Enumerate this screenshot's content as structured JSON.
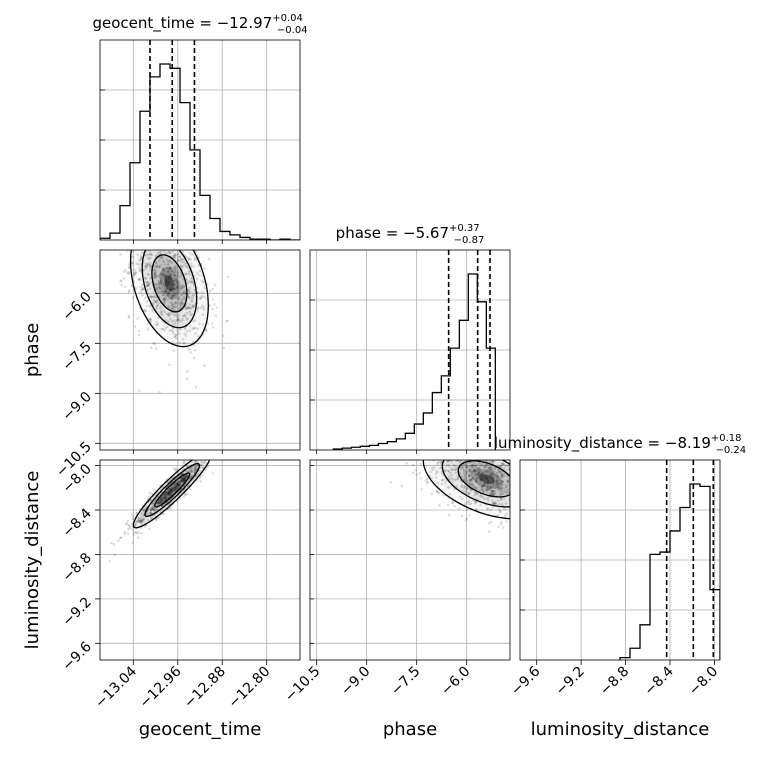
{
  "chart_data": {
    "type": "corner",
    "parameters": [
      {
        "name": "geocent_time",
        "range": [
          -13.1,
          -12.74
        ],
        "ticks": [
          -13.04,
          -12.96,
          -12.88,
          -12.8
        ],
        "tick_labels": [
          "−13.04",
          "−12.96",
          "−12.88",
          "−12.80"
        ],
        "title": {
          "label": "geocent_time",
          "value": "−12.97",
          "plus": "+0.04",
          "minus": "−0.04"
        },
        "quantiles": [
          -13.01,
          -12.97,
          -12.93
        ],
        "hist": {
          "edges_start": -13.1,
          "bin_width": 0.018,
          "counts": [
            2,
            8,
            40,
            90,
            150,
            190,
            205,
            200,
            160,
            105,
            52,
            25,
            10,
            6,
            3,
            1,
            1,
            0,
            1,
            0
          ]
        }
      },
      {
        "name": "phase",
        "range": [
          -10.7,
          -4.7
        ],
        "ticks": [
          -10.5,
          -9.0,
          -7.5,
          -6.0
        ],
        "tick_labels": [
          "−10.5",
          "−9.0",
          "−7.5",
          "−6.0"
        ],
        "title": {
          "label": "phase",
          "value": "−5.67",
          "plus": "+0.37",
          "minus": "−0.87"
        },
        "quantiles": [
          -6.54,
          -5.67,
          -5.3
        ],
        "hist": {
          "edges_start": -10.0,
          "bin_width": 0.27,
          "counts": [
            1,
            2,
            3,
            4,
            5,
            7,
            9,
            12,
            18,
            28,
            40,
            62,
            80,
            110,
            140,
            190,
            160,
            110
          ]
        }
      },
      {
        "name": "luminosity_distance",
        "range": [
          -9.75,
          -7.95
        ],
        "ticks": [
          -9.6,
          -9.2,
          -8.8,
          -8.4,
          -8.0
        ],
        "tick_labels": [
          "−9.6",
          "−9.2",
          "−8.8",
          "−8.4",
          "−8.0"
        ],
        "title": {
          "label": "luminosity_distance",
          "value": "−8.19",
          "plus": "+0.18",
          "minus": "−0.24"
        },
        "quantiles": [
          -8.43,
          -8.19,
          -8.01
        ],
        "hist": {
          "edges_start": -8.85,
          "bin_width": 0.09,
          "counts": [
            2,
            10,
            30,
            90,
            92,
            110,
            130,
            150,
            148,
            60
          ]
        }
      }
    ],
    "axis_labels": {
      "x": [
        "geocent_time",
        "phase",
        "luminosity_distance"
      ],
      "y": [
        "phase",
        "luminosity_distance"
      ]
    },
    "pairs": [
      {
        "x": "geocent_time",
        "y": "phase",
        "mean": [
          -12.975,
          -5.7
        ],
        "sd": [
          0.035,
          0.95
        ],
        "rho": -0.35,
        "n": 900
      },
      {
        "x": "geocent_time",
        "y": "luminosity_distance",
        "mean": [
          -12.97,
          -8.22
        ],
        "sd": [
          0.035,
          0.17
        ],
        "rho": 0.93,
        "n": 900
      },
      {
        "x": "phase",
        "y": "luminosity_distance",
        "mean": [
          -5.4,
          -8.12
        ],
        "sd": [
          0.95,
          0.18
        ],
        "rho": -0.45,
        "n": 900
      }
    ],
    "grid": true
  }
}
